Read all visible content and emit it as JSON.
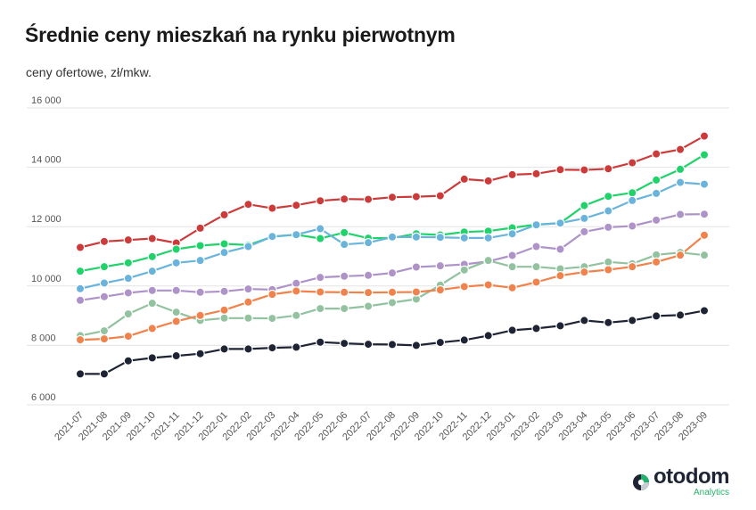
{
  "header": {
    "title": "Średnie ceny mieszkań na rynku pierwotnym",
    "subtitle": "ceny ofertowe, zł/mkw."
  },
  "logo": {
    "name": "otodom",
    "sub": "Analytics"
  },
  "colors": {
    "red": "#cc3a3a",
    "green": "#1fd36a",
    "blue": "#6ab4dc",
    "purple": "#ae93c8",
    "mint": "#92c2a0",
    "orange": "#f0824c",
    "navy": "#1e2434",
    "grid": "#e3e3e3",
    "tick_text": "#555555",
    "brand_green": "#23b26b"
  },
  "chart_data": {
    "type": "line",
    "title": "Średnie ceny mieszkań na rynku pierwotnym",
    "subtitle": "ceny ofertowe, zł/mkw.",
    "xlabel": "",
    "ylabel": "",
    "ylim": [
      6000,
      16000
    ],
    "yticks": [
      6000,
      8000,
      10000,
      12000,
      14000,
      16000
    ],
    "ytick_labels": [
      "6 000",
      "8 000",
      "10 000",
      "12 000",
      "14 000",
      "16 000"
    ],
    "grid": true,
    "legend": "none",
    "categories": [
      "2021-07",
      "2021-08",
      "2021-09",
      "2021-10",
      "2021-11",
      "2021-12",
      "2022-01",
      "2022-02",
      "2022-03",
      "2022-04",
      "2022-05",
      "2022-06",
      "2022-07",
      "2022-08",
      "2022-09",
      "2022-10",
      "2022-11",
      "2022-12",
      "2023-01",
      "2023-02",
      "2023-03",
      "2023-04",
      "2023-05",
      "2023-06",
      "2023-07",
      "2023-08",
      "2023-09"
    ],
    "series": [
      {
        "color": "#cc3a3a",
        "values": [
          11300,
          11500,
          11550,
          11600,
          11450,
          11950,
          12400,
          12750,
          12620,
          12720,
          12870,
          12930,
          12920,
          12990,
          13010,
          13040,
          13600,
          13540,
          13750,
          13780,
          13920,
          13910,
          13950,
          14150,
          14450,
          14600,
          15050
        ]
      },
      {
        "color": "#1fd36a",
        "values": [
          10500,
          10650,
          10780,
          10990,
          11240,
          11360,
          11420,
          11380,
          11660,
          11730,
          11600,
          11800,
          11610,
          11620,
          11760,
          11720,
          11820,
          11850,
          11960,
          12070,
          12120,
          12710,
          13020,
          13140,
          13570,
          13930,
          14420
        ]
      },
      {
        "color": "#6ab4dc",
        "values": [
          9910,
          10100,
          10260,
          10500,
          10780,
          10860,
          11130,
          11330,
          11670,
          11730,
          11930,
          11400,
          11460,
          11650,
          11650,
          11640,
          11620,
          11620,
          11760,
          12060,
          12120,
          12280,
          12530,
          12880,
          13120,
          13490,
          13430
        ]
      },
      {
        "color": "#ae93c8",
        "values": [
          9520,
          9640,
          9770,
          9850,
          9850,
          9790,
          9820,
          9900,
          9880,
          10090,
          10290,
          10330,
          10360,
          10440,
          10640,
          10680,
          10730,
          10830,
          11030,
          11330,
          11240,
          11830,
          11980,
          12020,
          12220,
          12410,
          12420
        ]
      },
      {
        "color": "#92c2a0",
        "values": [
          8330,
          8490,
          9060,
          9420,
          9120,
          8840,
          8920,
          8920,
          8910,
          9010,
          9240,
          9240,
          9320,
          9440,
          9560,
          10030,
          10540,
          10860,
          10650,
          10650,
          10580,
          10650,
          10810,
          10750,
          11050,
          11130,
          11040
        ]
      },
      {
        "color": "#f0824c",
        "values": [
          8190,
          8220,
          8310,
          8570,
          8810,
          9010,
          9190,
          9460,
          9720,
          9830,
          9800,
          9790,
          9780,
          9790,
          9800,
          9870,
          9980,
          10040,
          9940,
          10130,
          10350,
          10470,
          10550,
          10650,
          10810,
          11040,
          11710
        ]
      },
      {
        "color": "#1e2434",
        "values": [
          7040,
          7040,
          7480,
          7580,
          7650,
          7720,
          7880,
          7880,
          7920,
          7940,
          8110,
          8070,
          8040,
          8030,
          8000,
          8100,
          8180,
          8330,
          8510,
          8570,
          8660,
          8840,
          8770,
          8840,
          8990,
          9020,
          9170
        ]
      }
    ]
  }
}
